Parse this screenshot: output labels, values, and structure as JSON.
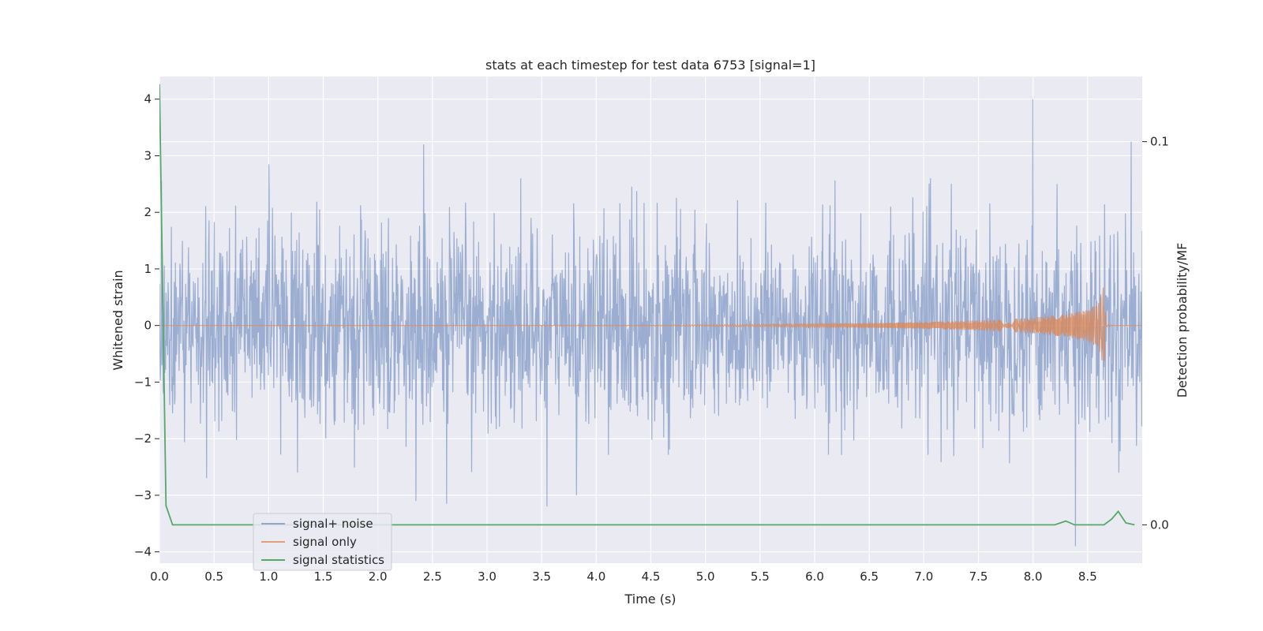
{
  "chart_data": {
    "type": "line",
    "title": "stats at each timestep for test data 6753 [signal=1]",
    "xlabel": "Time (s)",
    "ylabel": "Whitened strain",
    "y2label": "Detection probability/MF",
    "xlim": [
      0.0,
      9.0
    ],
    "ylim": [
      -4.2,
      4.4
    ],
    "y2lim": [
      -0.01,
      0.117
    ],
    "xticks": [
      "0.0",
      "0.5",
      "1.0",
      "1.5",
      "2.0",
      "2.5",
      "3.0",
      "3.5",
      "4.0",
      "4.5",
      "5.0",
      "5.5",
      "6.0",
      "6.5",
      "7.0",
      "7.5",
      "8.0",
      "8.5"
    ],
    "yticks": [
      "4",
      "3",
      "2",
      "1",
      "0",
      "−1",
      "−2",
      "−3",
      "−4"
    ],
    "y2ticks": [
      "0.1",
      "0.0"
    ],
    "grid": true,
    "legend_position": "lower-left",
    "series": [
      {
        "name": "signal+ noise",
        "color": "#4c72b0",
        "description_peaks": {
          "x": [
            0.02,
            0.43,
            1.0,
            2.35,
            2.42,
            2.63,
            3.55,
            3.82,
            8.0,
            8.22,
            8.39,
            8.9
          ],
          "y": [
            2.55,
            -2.7,
            2.85,
            -3.1,
            3.2,
            -3.15,
            -3.2,
            -3.0,
            4.0,
            2.5,
            -3.9,
            3.25
          ]
        },
        "typical_amplitude": 1.4
      },
      {
        "name": "signal only",
        "color": "#dd8452",
        "x": [
          0.0,
          4.5,
          5.5,
          6.5,
          7.0,
          7.5,
          8.0,
          8.3,
          8.5,
          8.6,
          8.65,
          8.67,
          8.75,
          9.0
        ],
        "envelope": [
          0.0,
          0.005,
          0.02,
          0.04,
          0.06,
          0.09,
          0.14,
          0.2,
          0.28,
          0.4,
          0.75,
          0.02,
          0.0,
          0.0
        ]
      },
      {
        "name": "signal statistics",
        "color": "#55a868",
        "axis": "right",
        "x": [
          0.0,
          0.06,
          0.12,
          0.2,
          8.2,
          8.3,
          8.38,
          8.65,
          8.72,
          8.78,
          8.85,
          8.93
        ],
        "values": [
          0.115,
          0.005,
          0.0,
          0.0,
          0.0,
          0.001,
          0.0,
          0.0,
          0.0015,
          0.0035,
          0.0005,
          0.0
        ]
      }
    ]
  }
}
